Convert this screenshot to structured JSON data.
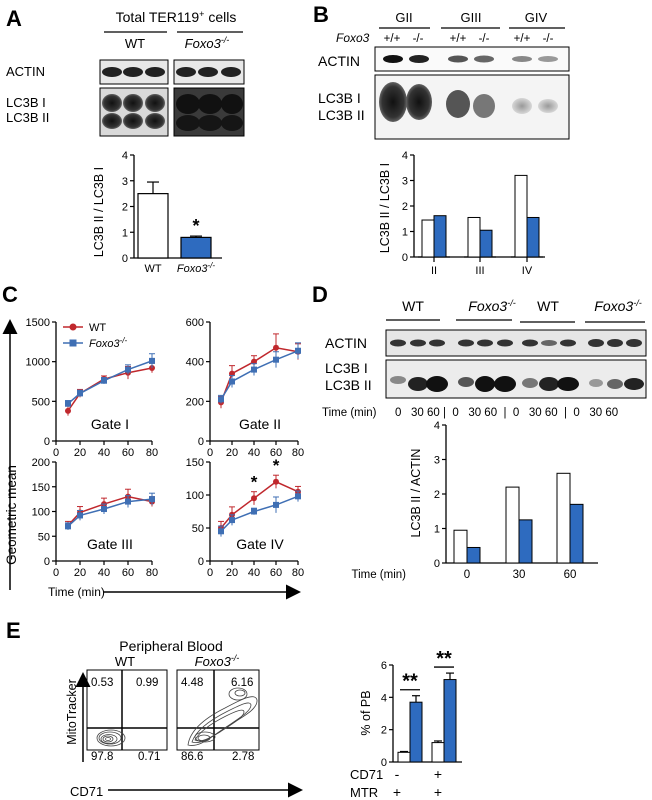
{
  "panels": {
    "A": {
      "letter": "A",
      "title_main": "Total TER119",
      "title_sup": "+",
      "title_rest": " cells",
      "wt": "WT",
      "ko": "Foxo3",
      "ko_sup": "-/-",
      "actin": "ACTIN",
      "lc3b_i": "LC3B I",
      "lc3b_ii": "LC3B II",
      "star": "*"
    },
    "B": {
      "letter": "B",
      "gates": [
        "GII",
        "GIII",
        "GIV"
      ],
      "foxo3": "Foxo3",
      "genotypes": [
        "+/+",
        "-/-",
        "+/+",
        "-/-",
        "+/+",
        "-/-"
      ],
      "actin": "ACTIN",
      "lc3b_i": "LC3B I",
      "lc3b_ii": "LC3B II"
    },
    "C": {
      "letter": "C",
      "legend_wt": "WT",
      "legend_ko": "Foxo3",
      "legend_ko_sup": "-/-",
      "ylabel": "Geometric mean",
      "xlabel": "Time (min)",
      "star": "*"
    },
    "D": {
      "letter": "D",
      "groups": [
        "WT",
        "Foxo3",
        "WT",
        "Foxo3"
      ],
      "ko_sup": "-/-",
      "actin": "ACTIN",
      "lc3b_i": "LC3B I",
      "lc3b_ii": "LC3B II",
      "time_label": "Time (min)",
      "time_row": "0   30 60 |  0   30 60  |  0   30 60  |  0   30 60"
    },
    "E": {
      "letter": "E",
      "title": "Peripheral Blood",
      "wt": "WT",
      "ko": "Foxo3",
      "ko_sup": "-/-",
      "ylabel_flow": "MitoTracker",
      "xlabel_flow": "CD71",
      "wt_quadrants": [
        "0.53",
        "0.99",
        "97.8",
        "0.71"
      ],
      "ko_quadrants": [
        "4.48",
        "6.16",
        "86.6",
        "2.78"
      ],
      "stars": "**",
      "row_cd71": "CD71",
      "row_mtr": "MTR",
      "cd71_signs": [
        "-",
        "+"
      ],
      "mtr_signs": [
        "+",
        "+"
      ]
    }
  },
  "chart_data": [
    {
      "id": "A-bar",
      "type": "bar",
      "categories": [
        "WT",
        "Foxo3-/-"
      ],
      "values": [
        2.5,
        0.8
      ],
      "errors": [
        0.45,
        0.05
      ],
      "colors": [
        "#ffffff",
        "#2e6bbf"
      ],
      "ylabel": "LC3B II / LC3B I",
      "ylim": [
        0,
        4
      ],
      "yticks": [
        0,
        1,
        2,
        3,
        4
      ],
      "significance": [
        "",
        "*"
      ]
    },
    {
      "id": "B-bar",
      "type": "bar",
      "categories": [
        "II",
        "III",
        "IV"
      ],
      "series": [
        {
          "color": "#ffffff",
          "values": [
            1.45,
            1.55,
            3.2
          ]
        },
        {
          "color": "#2e6bbf",
          "values": [
            1.62,
            1.05,
            1.55
          ]
        }
      ],
      "ylabel": "LC3B II / LC3B I",
      "ylim": [
        0,
        4
      ],
      "yticks": [
        0,
        1,
        2,
        3,
        4
      ]
    },
    {
      "id": "C-line",
      "type": "line",
      "subplots": [
        {
          "label": "Gate I",
          "ylim": [
            0,
            1500
          ],
          "yticks": [
            0,
            500,
            1000,
            1500
          ],
          "x": [
            10,
            20,
            40,
            60,
            80
          ],
          "series": [
            {
              "name": "WT",
              "color": "#c0282d",
              "values": [
                380,
                600,
                780,
                860,
                920
              ],
              "errors": [
                60,
                50,
                40,
                80,
                60
              ]
            },
            {
              "name": "Foxo3-/-",
              "color": "#3f6fb4",
              "values": [
                470,
                600,
                760,
                900,
                1010
              ],
              "errors": [
                40,
                40,
                40,
                60,
                90
              ]
            }
          ]
        },
        {
          "label": "Gate II",
          "ylim": [
            0,
            600
          ],
          "yticks": [
            0,
            200,
            400,
            600
          ],
          "x": [
            10,
            20,
            40,
            60,
            80
          ],
          "series": [
            {
              "name": "WT",
              "color": "#c0282d",
              "values": [
                195,
                340,
                400,
                470,
                450
              ],
              "errors": [
                30,
                40,
                30,
                70,
                40
              ]
            },
            {
              "name": "Foxo3-/-",
              "color": "#3f6fb4",
              "values": [
                210,
                300,
                360,
                410,
                455
              ],
              "errors": [
                20,
                30,
                30,
                40,
                40
              ]
            }
          ]
        },
        {
          "label": "Gate III",
          "ylim": [
            0,
            200
          ],
          "yticks": [
            0,
            50,
            100,
            150,
            200
          ],
          "x": [
            10,
            20,
            40,
            60,
            80
          ],
          "series": [
            {
              "name": "WT",
              "color": "#c0282d",
              "values": [
                72,
                98,
                115,
                130,
                120
              ],
              "errors": [
                8,
                12,
                12,
                15,
                10
              ]
            },
            {
              "name": "Foxo3-/-",
              "color": "#3f6fb4",
              "values": [
                70,
                92,
                105,
                120,
                125
              ],
              "errors": [
                7,
                10,
                10,
                12,
                12
              ]
            }
          ]
        },
        {
          "label": "Gate IV",
          "ylim": [
            0,
            150
          ],
          "yticks": [
            0,
            50,
            100,
            150
          ],
          "x": [
            10,
            20,
            40,
            60,
            80
          ],
          "series": [
            {
              "name": "WT",
              "color": "#c0282d",
              "values": [
                50,
                70,
                95,
                120,
                105
              ],
              "errors": [
                10,
                12,
                10,
                10,
                8
              ]
            },
            {
              "name": "Foxo3-/-",
              "color": "#3f6fb4",
              "values": [
                45,
                62,
                75,
                85,
                98
              ],
              "errors": [
                8,
                8,
                5,
                12,
                8
              ]
            }
          ],
          "stars_at": [
            40,
            60
          ]
        }
      ],
      "xticks": [
        0,
        20,
        40,
        60,
        80
      ],
      "xlabel": "Time (min)",
      "ylabel": "Geometric mean"
    },
    {
      "id": "D-bar",
      "type": "bar",
      "categories": [
        "0",
        "30",
        "60"
      ],
      "series": [
        {
          "color": "#ffffff",
          "values": [
            0.95,
            2.2,
            2.6
          ]
        },
        {
          "color": "#2e6bbf",
          "values": [
            0.45,
            1.25,
            1.7
          ]
        }
      ],
      "ylabel": "LC3B II / ACTIN",
      "xlabel": "Time (min)",
      "ylim": [
        0,
        4
      ],
      "yticks": [
        0,
        1,
        2,
        3,
        4
      ]
    },
    {
      "id": "E-bar",
      "type": "bar",
      "groups": 2,
      "series": [
        {
          "color": "#ffffff",
          "values": [
            0.6,
            1.2
          ],
          "errors": [
            0.05,
            0.1
          ]
        },
        {
          "color": "#2e6bbf",
          "values": [
            3.7,
            5.1
          ],
          "errors": [
            0.4,
            0.4
          ]
        }
      ],
      "ylabel": "% of PB",
      "ylim": [
        0,
        6
      ],
      "yticks": [
        0,
        2,
        4,
        6
      ],
      "significance": [
        "**",
        "**"
      ]
    }
  ]
}
